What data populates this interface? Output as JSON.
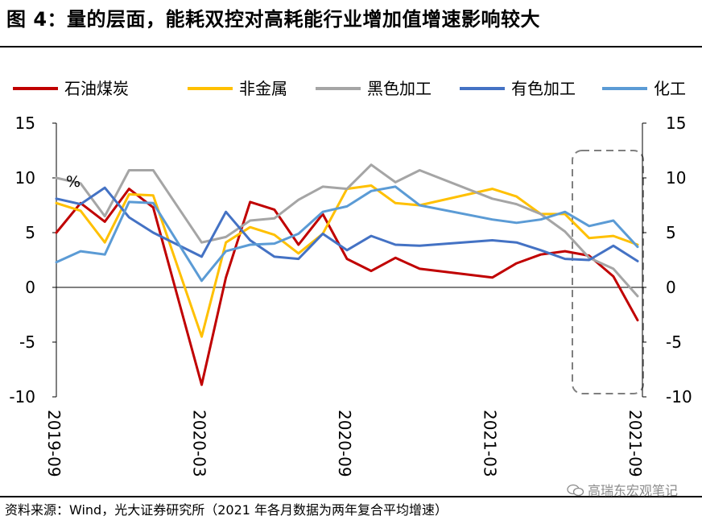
{
  "header": {
    "title": "图 4：量的层面，能耗双控对高耗能行业增加值增速影响较大"
  },
  "footer": {
    "source": "资料来源：Wind，光大证券研究所（2021 年各月数据为两年复合平均增速）",
    "watermark": "高瑞东宏观笔记"
  },
  "chart_data": {
    "type": "line",
    "unit_label": "%",
    "x_ticks": [
      "2019-09",
      "2020-03",
      "2020-09",
      "2021-03",
      "2021-09"
    ],
    "ylim": [
      -10,
      15
    ],
    "y_ticks": [
      15,
      10,
      5,
      0,
      -5,
      -10
    ],
    "legend_position": "top",
    "x": [
      "2019-09",
      "2019-10",
      "2019-11",
      "2019-12",
      "2020-01",
      "2020-02",
      "2020-03",
      "2020-04",
      "2020-05",
      "2020-06",
      "2020-07",
      "2020-08",
      "2020-09",
      "2020-10",
      "2020-11",
      "2020-12",
      "2021-01",
      "2021-02",
      "2021-03",
      "2021-04",
      "2021-05",
      "2021-06",
      "2021-07",
      "2021-08",
      "2021-09"
    ],
    "series": [
      {
        "name": "石油煤炭",
        "color": "#c00000",
        "values": [
          5.0,
          7.7,
          6.0,
          9.0,
          7.3,
          null,
          -8.9,
          0.9,
          7.8,
          7.1,
          3.9,
          6.7,
          2.6,
          1.5,
          2.7,
          1.7,
          null,
          null,
          0.9,
          2.2,
          3.0,
          3.3,
          2.9,
          1.0,
          -3.0
        ]
      },
      {
        "name": "非金属",
        "color": "#ffc000",
        "values": [
          7.7,
          7.0,
          4.1,
          8.5,
          8.4,
          null,
          -4.5,
          4.1,
          5.5,
          4.8,
          3.1,
          4.9,
          9.0,
          9.3,
          7.7,
          7.5,
          null,
          null,
          9.0,
          8.3,
          6.7,
          6.7,
          4.5,
          4.7,
          3.9
        ]
      },
      {
        "name": "黑色加工",
        "color": "#a5a5a5",
        "values": [
          10.0,
          9.5,
          6.5,
          10.7,
          10.7,
          null,
          4.1,
          4.6,
          6.1,
          6.3,
          8.0,
          9.2,
          9.0,
          11.2,
          9.6,
          10.7,
          null,
          null,
          8.1,
          7.6,
          6.7,
          5.1,
          2.7,
          1.7,
          -0.8
        ]
      },
      {
        "name": "有色加工",
        "color": "#4472c4",
        "values": [
          8.1,
          7.6,
          9.1,
          6.4,
          5.0,
          null,
          2.8,
          6.9,
          4.3,
          2.8,
          2.6,
          4.9,
          3.4,
          4.7,
          3.9,
          3.8,
          null,
          null,
          4.3,
          4.1,
          3.4,
          2.6,
          2.5,
          3.8,
          2.4
        ]
      },
      {
        "name": "化工",
        "color": "#5b9bd5",
        "values": [
          2.3,
          3.3,
          3.0,
          7.8,
          7.7,
          null,
          0.6,
          3.3,
          3.9,
          4.0,
          4.9,
          6.9,
          7.4,
          8.8,
          9.2,
          7.5,
          null,
          null,
          6.2,
          5.9,
          6.2,
          6.9,
          5.6,
          6.1,
          3.7
        ]
      }
    ]
  }
}
